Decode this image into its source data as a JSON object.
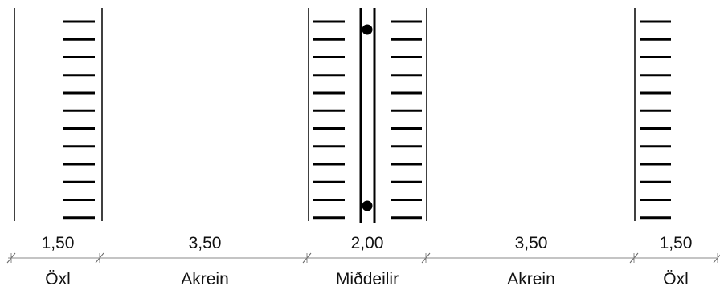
{
  "diagram": {
    "segments": [
      {
        "width": "1,50",
        "name": "Öxl"
      },
      {
        "width": "3,50",
        "name": "Akrein"
      },
      {
        "width": "2,00",
        "name": "Miðdeilir"
      },
      {
        "width": "3,50",
        "name": "Akrein"
      },
      {
        "width": "1,50",
        "name": "Öxl"
      }
    ],
    "line_color": "#000000"
  }
}
